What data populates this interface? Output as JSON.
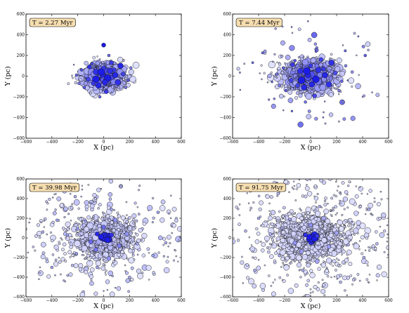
{
  "chart_data": [
    {
      "type": "scatter",
      "annotation": "T = 2.27 Myr",
      "xlabel": "X (pc)",
      "ylabel": "Y (pc)",
      "xlim": [
        -600,
        600
      ],
      "ylim": [
        -600,
        600
      ],
      "xticks": [
        -600,
        -400,
        -200,
        0,
        200,
        400,
        600
      ],
      "yticks": [
        -600,
        -400,
        -200,
        0,
        200,
        400,
        600
      ],
      "xtick_labels": [
        "−600",
        "−400",
        "−200",
        "0",
        "200",
        "400",
        "600"
      ],
      "ytick_labels": [
        "−600",
        "−400",
        "−200",
        "0",
        "200",
        "400",
        "600"
      ],
      "grid": false,
      "marker": "circle",
      "points": [
        [
          -10,
          15,
          4,
          0.95
        ],
        [
          30,
          -20,
          5,
          1
        ],
        [
          -60,
          40,
          4,
          0.9
        ],
        [
          80,
          60,
          3,
          0.85
        ],
        [
          -120,
          -30,
          3,
          0.8
        ],
        [
          110,
          -60,
          4,
          0.9
        ],
        [
          0,
          80,
          3,
          0.85
        ],
        [
          -40,
          -90,
          4,
          0.95
        ],
        [
          150,
          20,
          3,
          0.8
        ],
        [
          -170,
          60,
          2,
          0.7
        ],
        [
          60,
          130,
          3,
          0.85
        ],
        [
          -90,
          120,
          2,
          0.75
        ],
        [
          20,
          -150,
          3,
          0.85
        ],
        [
          -150,
          -110,
          2,
          0.7
        ],
        [
          190,
          -40,
          2,
          0.7
        ],
        [
          -210,
          10,
          2,
          0.6
        ],
        [
          40,
          200,
          2,
          0.6
        ],
        [
          -30,
          -200,
          2,
          0.6
        ],
        [
          130,
          100,
          4,
          0.95
        ],
        [
          -110,
          90,
          3,
          0.9
        ],
        [
          -60,
          -30,
          5,
          1
        ],
        [
          90,
          10,
          4,
          0.95
        ],
        [
          10,
          -60,
          4,
          0.95
        ],
        [
          -20,
          40,
          5,
          1
        ],
        [
          50,
          50,
          4,
          0.9
        ],
        [
          -80,
          -70,
          3,
          0.85
        ],
        [
          170,
          -110,
          2,
          0.55
        ],
        [
          -190,
          -70,
          2,
          0.55
        ],
        [
          210,
          80,
          2,
          0.5
        ],
        [
          -230,
          110,
          1,
          0.4
        ],
        [
          0,
          300,
          3,
          1
        ]
      ]
    },
    {
      "type": "scatter",
      "annotation": "T = 7.44 Myr",
      "xlabel": "X (pc)",
      "ylabel": "Y (pc)",
      "xlim": [
        -600,
        600
      ],
      "ylim": [
        -600,
        600
      ],
      "xticks": [
        -600,
        -400,
        -200,
        0,
        200,
        400,
        600
      ],
      "yticks": [
        -600,
        -400,
        -200,
        0,
        200,
        400,
        600
      ],
      "xtick_labels": [
        "−600",
        "−400",
        "−200",
        "0",
        "200",
        "400",
        "600"
      ],
      "ytick_labels": [
        "−600",
        "−400",
        "−200",
        "0",
        "200",
        "400",
        "600"
      ],
      "grid": false,
      "marker": "circle",
      "points": [
        [
          -20,
          10,
          4,
          0.95
        ],
        [
          40,
          -30,
          5,
          1
        ],
        [
          -80,
          50,
          4,
          0.9
        ],
        [
          100,
          70,
          3,
          0.85
        ],
        [
          -150,
          -40,
          3,
          0.8
        ],
        [
          140,
          -80,
          4,
          0.9
        ],
        [
          0,
          100,
          3,
          0.85
        ],
        [
          -50,
          -110,
          4,
          0.95
        ],
        [
          190,
          30,
          3,
          0.75
        ],
        [
          -210,
          80,
          2,
          0.65
        ],
        [
          80,
          160,
          3,
          0.8
        ],
        [
          -120,
          150,
          2,
          0.7
        ],
        [
          30,
          -190,
          3,
          0.8
        ],
        [
          -190,
          -140,
          2,
          0.65
        ],
        [
          240,
          -50,
          2,
          0.6
        ],
        [
          -260,
          20,
          2,
          0.55
        ],
        [
          50,
          250,
          2,
          0.55
        ],
        [
          -40,
          -250,
          2,
          0.55
        ],
        [
          160,
          130,
          4,
          0.9
        ],
        [
          -140,
          110,
          3,
          0.85
        ],
        [
          -70,
          -40,
          5,
          1
        ],
        [
          110,
          10,
          4,
          0.95
        ],
        [
          10,
          -80,
          4,
          0.95
        ],
        [
          -30,
          50,
          5,
          1
        ],
        [
          60,
          60,
          4,
          0.9
        ],
        [
          -100,
          -90,
          3,
          0.8
        ],
        [
          220,
          -140,
          2,
          0.5
        ],
        [
          -240,
          -90,
          2,
          0.5
        ],
        [
          270,
          100,
          2,
          0.45
        ],
        [
          -290,
          140,
          1,
          0.4
        ],
        [
          320,
          40,
          2,
          0.4
        ],
        [
          -330,
          -60,
          1,
          0.35
        ],
        [
          400,
          -200,
          1,
          0.3
        ]
      ]
    },
    {
      "type": "scatter",
      "annotation": "T = 39.98 Myr",
      "xlabel": "X (pc)",
      "ylabel": "Y (pc)",
      "xlim": [
        -600,
        600
      ],
      "ylim": [
        -600,
        600
      ],
      "xticks": [
        -600,
        -400,
        -200,
        0,
        200,
        400,
        600
      ],
      "yticks": [
        -600,
        -400,
        -200,
        0,
        200,
        400,
        600
      ],
      "xtick_labels": [
        "−600",
        "−400",
        "−200",
        "0",
        "200",
        "400",
        "600"
      ],
      "ytick_labels": [
        "−600",
        "−400",
        "−200",
        "0",
        "200",
        "400",
        "600"
      ],
      "grid": false,
      "marker": "circle",
      "points": [
        [
          -20,
          10,
          4,
          1
        ],
        [
          30,
          -20,
          4,
          1
        ],
        [
          -50,
          40,
          3,
          0.95
        ],
        [
          60,
          30,
          3,
          0.9
        ],
        [
          -100,
          -40,
          3,
          0.6
        ],
        [
          120,
          -80,
          3,
          0.5
        ],
        [
          0,
          110,
          3,
          0.6
        ],
        [
          -60,
          -120,
          3,
          0.55
        ],
        [
          180,
          40,
          3,
          0.4
        ],
        [
          -200,
          90,
          2,
          0.35
        ],
        [
          90,
          180,
          3,
          0.4
        ],
        [
          -140,
          170,
          2,
          0.35
        ],
        [
          40,
          -210,
          3,
          0.4
        ],
        [
          -210,
          -160,
          2,
          0.35
        ],
        [
          260,
          -60,
          2,
          0.3
        ],
        [
          -280,
          30,
          2,
          0.3
        ],
        [
          60,
          290,
          2,
          0.3
        ],
        [
          -50,
          -300,
          2,
          0.3
        ],
        [
          -360,
          180,
          2,
          0.3
        ],
        [
          380,
          -180,
          2,
          0.3
        ],
        [
          -400,
          -300,
          2,
          0.3
        ],
        [
          420,
          260,
          2,
          0.3
        ],
        [
          -470,
          60,
          2,
          0.25
        ],
        [
          480,
          -50,
          2,
          0.25
        ],
        [
          200,
          -400,
          2,
          0.25
        ],
        [
          -220,
          420,
          2,
          0.25
        ],
        [
          -500,
          -420,
          1,
          0.2
        ],
        [
          520,
          430,
          1,
          0.2
        ],
        [
          0,
          -540,
          1,
          0.2
        ],
        [
          -20,
          500,
          1,
          0.2
        ]
      ]
    },
    {
      "type": "scatter",
      "annotation": "T = 91.75 Myr",
      "xlabel": "X (pc)",
      "ylabel": "Y (pc)",
      "xlim": [
        -600,
        600
      ],
      "ylim": [
        -600,
        600
      ],
      "xticks": [
        -600,
        -400,
        -200,
        0,
        200,
        400,
        600
      ],
      "yticks": [
        -600,
        -400,
        -200,
        0,
        200,
        400,
        600
      ],
      "xtick_labels": [
        "−600",
        "−400",
        "−200",
        "0",
        "200",
        "400",
        "600"
      ],
      "ytick_labels": [
        "−600",
        "−400",
        "−200",
        "0",
        "200",
        "400",
        "600"
      ],
      "grid": false,
      "marker": "circle",
      "points": [
        [
          -10,
          10,
          4,
          1
        ],
        [
          30,
          -10,
          4,
          1
        ],
        [
          -40,
          30,
          3,
          0.9
        ],
        [
          50,
          20,
          3,
          0.85
        ],
        [
          -120,
          -50,
          3,
          0.4
        ],
        [
          140,
          -90,
          3,
          0.35
        ],
        [
          0,
          130,
          3,
          0.4
        ],
        [
          -70,
          -140,
          3,
          0.35
        ],
        [
          200,
          50,
          3,
          0.3
        ],
        [
          -220,
          100,
          2,
          0.3
        ],
        [
          100,
          200,
          3,
          0.3
        ],
        [
          -160,
          190,
          2,
          0.3
        ],
        [
          50,
          -240,
          3,
          0.3
        ],
        [
          -240,
          -180,
          2,
          0.3
        ],
        [
          290,
          -70,
          2,
          0.25
        ],
        [
          -310,
          40,
          2,
          0.25
        ],
        [
          70,
          320,
          2,
          0.25
        ],
        [
          -60,
          -330,
          2,
          0.25
        ],
        [
          -400,
          200,
          2,
          0.25
        ],
        [
          410,
          -200,
          2,
          0.25
        ],
        [
          -430,
          -330,
          2,
          0.25
        ],
        [
          450,
          290,
          2,
          0.25
        ],
        [
          -500,
          70,
          2,
          0.2
        ],
        [
          510,
          -60,
          2,
          0.2
        ],
        [
          230,
          -450,
          2,
          0.2
        ],
        [
          -250,
          450,
          2,
          0.2
        ],
        [
          -520,
          -460,
          1,
          0.2
        ],
        [
          540,
          470,
          1,
          0.2
        ],
        [
          0,
          -560,
          1,
          0.2
        ],
        [
          -30,
          540,
          1,
          0.2
        ]
      ]
    }
  ]
}
